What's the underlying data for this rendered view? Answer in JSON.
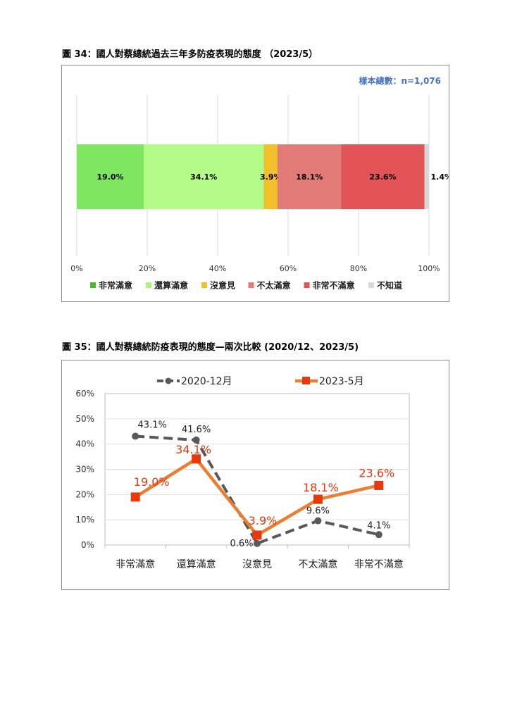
{
  "figure1": {
    "title": "圖 34：國人對蔡總統過去三年多防疫表現的態度 （2023/5）",
    "sample_note": "樣本總數：n=1,076",
    "note_color": "#4472c4",
    "chart_data": {
      "type": "bar",
      "orientation": "horizontal-stacked-100",
      "title": "",
      "xlim": [
        0,
        100
      ],
      "ticks": [
        "0%",
        "20%",
        "40%",
        "60%",
        "80%",
        "100%"
      ],
      "grid": true,
      "legend_position": "bottom",
      "categories": [
        "非常滿意",
        "還算滿意",
        "沒意見",
        "不太滿意",
        "非常不滿意",
        "不知道"
      ],
      "values": [
        19.0,
        34.1,
        3.9,
        18.1,
        23.6,
        1.4
      ],
      "labels": [
        "19.0%",
        "34.1%",
        "3.9%",
        "18.1%",
        "23.6%",
        "1.4%"
      ],
      "colors": [
        "#7ee660",
        "#b3fa86",
        "#f2be2c",
        "#e27b78",
        "#e15356",
        "#d9d9d9"
      ],
      "legend_swatch_colors": [
        "#4fb82f",
        "#a8f57a",
        "#f2be2c",
        "#e27b78",
        "#e15356",
        "#d9d9d9"
      ]
    }
  },
  "figure2": {
    "title": "圖 35：國人對蔡總統防疫表現的態度—兩次比較 (2020/12、2023/5)",
    "chart_data": {
      "type": "line",
      "title": "",
      "categories": [
        "非常滿意",
        "還算滿意",
        "沒意見",
        "不太滿意",
        "非常不滿意"
      ],
      "ylim": [
        0,
        60
      ],
      "yticks": [
        "0%",
        "10%",
        "20%",
        "30%",
        "40%",
        "50%",
        "60%"
      ],
      "grid": true,
      "legend_position": "top",
      "series": [
        {
          "name": "2020-12月",
          "values": [
            43.1,
            41.6,
            0.6,
            9.6,
            4.1
          ],
          "labels": [
            "43.1%",
            "41.6%",
            "0.6%",
            "9.6%",
            "4.1%"
          ],
          "color": "#595959",
          "style": "dashed"
        },
        {
          "name": "2023-5月",
          "values": [
            19.0,
            34.1,
            3.9,
            18.1,
            23.6
          ],
          "labels": [
            "19.0%",
            "34.1%",
            "3.9%",
            "18.1%",
            "23.6%"
          ],
          "color": "#ed7d31",
          "marker_color": "#e8390e",
          "style": "solid"
        }
      ]
    }
  }
}
